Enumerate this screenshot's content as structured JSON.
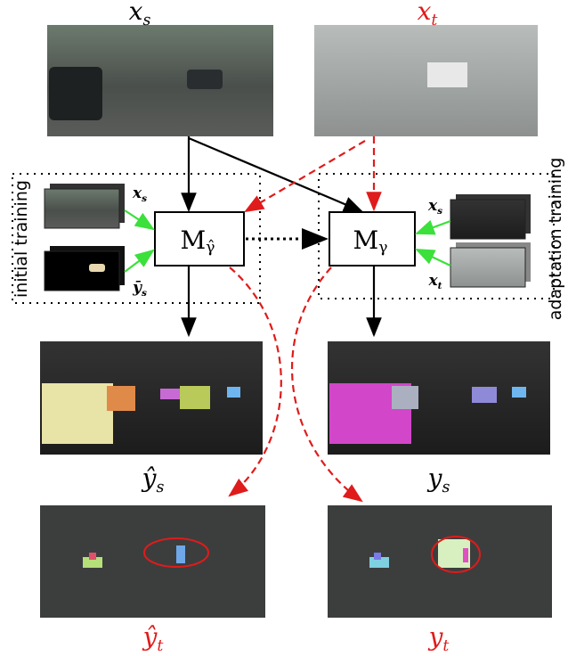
{
  "top": {
    "source": {
      "main": "x",
      "sub": "s"
    },
    "target": {
      "main": "x",
      "sub": "t"
    }
  },
  "models": {
    "initial": {
      "main": "M",
      "sub": "γ̂"
    },
    "adapted": {
      "main": "M",
      "sub": "γ"
    }
  },
  "groups": {
    "initial": "initial training",
    "adaptation": "adaptation training"
  },
  "inputs": {
    "initial": [
      {
        "main": "x",
        "sub": "s"
      },
      {
        "main": "ȳ",
        "sub": "s"
      }
    ],
    "adaptation": [
      {
        "main": "x",
        "sub": "s"
      },
      {
        "main": "x",
        "sub": "t"
      }
    ]
  },
  "outputs": {
    "source_initial": {
      "main": "ŷ",
      "sub": "s"
    },
    "source_adapted": {
      "main": "y",
      "sub": "s"
    },
    "target_initial": {
      "main": "ŷ",
      "sub": "t"
    },
    "target_adapted": {
      "main": "y",
      "sub": "t"
    }
  }
}
